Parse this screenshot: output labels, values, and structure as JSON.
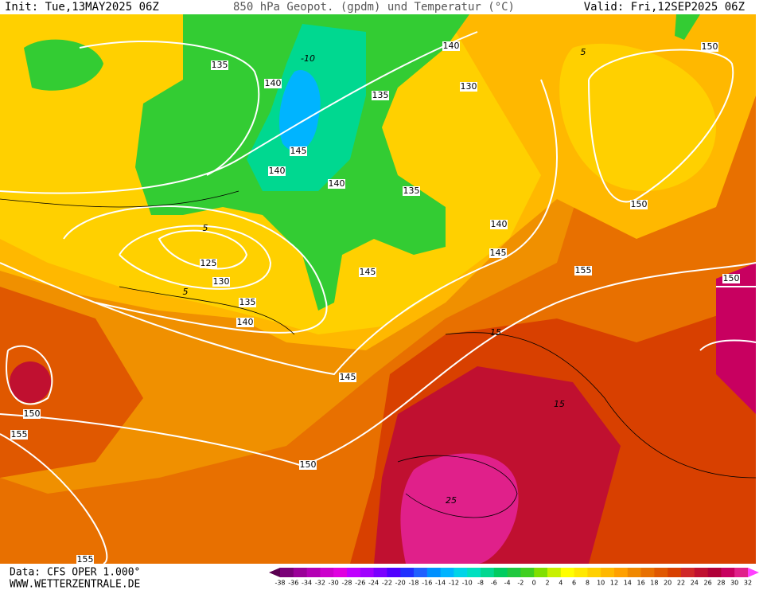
{
  "header": {
    "init": "Init: Tue,13MAY2025 06Z",
    "title": "850 hPa Geopot. (gpdm) und Temperatur (°C)",
    "valid": "Valid: Fri,12SEP2025 06Z"
  },
  "map": {
    "height_labels": [
      "135",
      "140",
      "140",
      "130",
      "135",
      "145",
      "140",
      "140",
      "135",
      "140",
      "145",
      "145",
      "125",
      "130",
      "135",
      "140",
      "145",
      "150",
      "155",
      "150",
      "155",
      "155",
      "150",
      "150",
      "150"
    ],
    "temperature_labels": [
      "5",
      "5",
      "5",
      "-10",
      "15",
      "15",
      "25"
    ]
  },
  "footer": {
    "data": "Data: CFS OPER 1.000°",
    "site": "WWW.WETTERZENTRALE.DE"
  },
  "colorbar": {
    "ticks": [
      -38,
      -36,
      -34,
      -32,
      -30,
      -28,
      -26,
      -24,
      -22,
      -20,
      -18,
      -16,
      -14,
      -12,
      -10,
      -8,
      -6,
      -4,
      -2,
      0,
      2,
      4,
      6,
      8,
      10,
      12,
      14,
      16,
      18,
      20,
      22,
      24,
      26,
      28,
      30,
      32
    ],
    "colors": [
      "#5a0050",
      "#7a0078",
      "#9a0098",
      "#b400b4",
      "#cc00cc",
      "#e000e0",
      "#c000ff",
      "#a000ff",
      "#7a00ff",
      "#5000ff",
      "#2030ff",
      "#2060ff",
      "#0090ff",
      "#00b4ff",
      "#00d4e8",
      "#00e0c0",
      "#00d890",
      "#00cc60",
      "#20c840",
      "#40d020",
      "#80e000",
      "#c8f000",
      "#ffff00",
      "#ffe800",
      "#ffd000",
      "#ffb800",
      "#ffa000",
      "#f08800",
      "#e87000",
      "#e05800",
      "#d84000",
      "#d02828",
      "#c01030",
      "#b00038",
      "#c80060",
      "#e0208a",
      "#ff40ff"
    ]
  }
}
